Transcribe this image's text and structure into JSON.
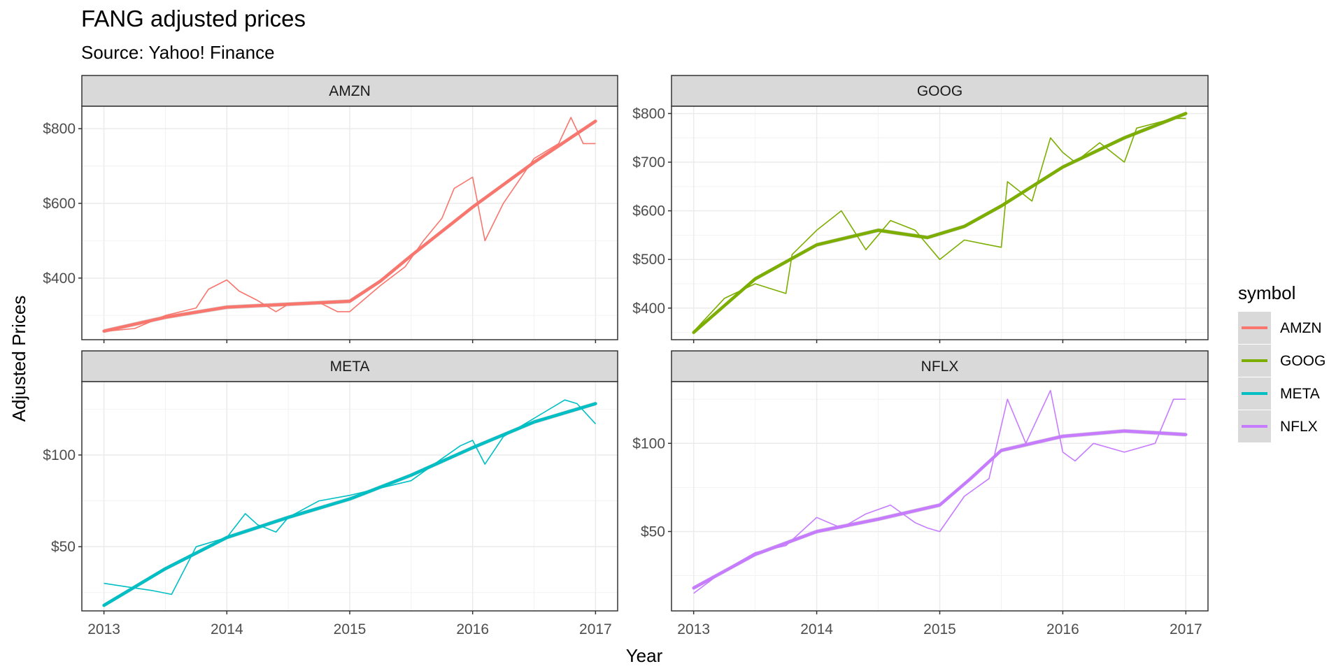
{
  "title": "FANG adjusted prices",
  "subtitle": "Source: Yahoo! Finance",
  "chart_data": {
    "type": "line",
    "title": "FANG adjusted prices",
    "subtitle": "Source: Yahoo! Finance",
    "xlabel": "Year",
    "ylabel": "Adjusted Prices",
    "x_ticks": [
      "2013",
      "2014",
      "2015",
      "2016",
      "2017"
    ],
    "grid": true,
    "legend": {
      "title": "symbol",
      "position": "right",
      "entries": [
        "AMZN",
        "GOOG",
        "META",
        "NFLX"
      ]
    },
    "colors": {
      "AMZN": "#F8766D",
      "GOOG": "#7CAE00",
      "META": "#00BFC4",
      "NFLX": "#C77CFF"
    },
    "panels": [
      {
        "name": "AMZN",
        "color": "#F8766D",
        "ylim": [
          235,
          860
        ],
        "y_ticks": [
          400,
          600,
          800
        ],
        "y_tick_labels": [
          "$400",
          "$600",
          "$800"
        ],
        "x": [
          2013.0,
          2013.25,
          2013.5,
          2013.75,
          2013.85,
          2014.0,
          2014.1,
          2014.25,
          2014.4,
          2014.5,
          2014.75,
          2014.9,
          2015.0,
          2015.25,
          2015.45,
          2015.6,
          2015.75,
          2015.85,
          2016.0,
          2016.1,
          2016.25,
          2016.5,
          2016.7,
          2016.8,
          2016.9,
          2017.0
        ],
        "y": [
          257,
          265,
          300,
          320,
          370,
          395,
          365,
          340,
          310,
          330,
          335,
          310,
          310,
          380,
          430,
          500,
          560,
          640,
          670,
          500,
          600,
          720,
          760,
          830,
          760,
          760
        ],
        "trend_x": [
          2013.0,
          2013.5,
          2014.0,
          2014.5,
          2015.0,
          2015.25,
          2015.5,
          2016.0,
          2016.5,
          2017.0
        ],
        "trend_y": [
          258,
          295,
          322,
          330,
          338,
          392,
          460,
          590,
          710,
          820
        ]
      },
      {
        "name": "GOOG",
        "color": "#7CAE00",
        "ylim": [
          335,
          815
        ],
        "y_ticks": [
          400,
          500,
          600,
          700,
          800
        ],
        "y_tick_labels": [
          "$400",
          "$500",
          "$600",
          "$700",
          "$800"
        ],
        "x": [
          2013.0,
          2013.25,
          2013.5,
          2013.75,
          2013.8,
          2014.0,
          2014.2,
          2014.4,
          2014.6,
          2014.8,
          2015.0,
          2015.2,
          2015.5,
          2015.55,
          2015.75,
          2015.9,
          2016.0,
          2016.1,
          2016.3,
          2016.5,
          2016.6,
          2016.75,
          2016.9,
          2017.0
        ],
        "y": [
          352,
          420,
          450,
          430,
          510,
          560,
          600,
          520,
          580,
          560,
          500,
          540,
          525,
          660,
          620,
          750,
          720,
          700,
          740,
          700,
          770,
          780,
          790,
          790
        ],
        "trend_x": [
          2013.0,
          2013.5,
          2014.0,
          2014.5,
          2014.9,
          2015.2,
          2015.5,
          2016.0,
          2016.5,
          2017.0
        ],
        "trend_y": [
          350,
          460,
          530,
          560,
          545,
          568,
          610,
          690,
          750,
          800
        ]
      },
      {
        "name": "META",
        "color": "#00BFC4",
        "ylim": [
          15,
          140
        ],
        "y_ticks": [
          50,
          100
        ],
        "y_tick_labels": [
          "$50",
          "$100"
        ],
        "x": [
          2013.0,
          2013.2,
          2013.4,
          2013.55,
          2013.75,
          2014.0,
          2014.15,
          2014.25,
          2014.4,
          2014.5,
          2014.75,
          2015.0,
          2015.25,
          2015.5,
          2015.75,
          2015.9,
          2016.0,
          2016.1,
          2016.25,
          2016.5,
          2016.75,
          2016.85,
          2017.0
        ],
        "y": [
          30,
          28,
          26,
          24,
          50,
          55,
          68,
          62,
          58,
          66,
          75,
          78,
          82,
          86,
          98,
          105,
          108,
          95,
          110,
          120,
          130,
          128,
          117
        ],
        "trend_x": [
          2013.0,
          2013.5,
          2014.0,
          2014.5,
          2015.0,
          2015.5,
          2016.0,
          2016.5,
          2017.0
        ],
        "trend_y": [
          18,
          38,
          55,
          66,
          76,
          89,
          104,
          118,
          128
        ]
      },
      {
        "name": "NFLX",
        "color": "#C77CFF",
        "ylim": [
          5,
          135
        ],
        "y_ticks": [
          50,
          100
        ],
        "y_tick_labels": [
          "$50",
          "$100"
        ],
        "x": [
          2013.0,
          2013.25,
          2013.5,
          2013.75,
          2014.0,
          2014.2,
          2014.4,
          2014.6,
          2014.8,
          2014.9,
          2015.0,
          2015.2,
          2015.4,
          2015.55,
          2015.7,
          2015.9,
          2016.0,
          2016.1,
          2016.25,
          2016.5,
          2016.75,
          2016.9,
          2017.0
        ],
        "y": [
          15,
          28,
          38,
          42,
          58,
          52,
          60,
          65,
          55,
          52,
          50,
          70,
          80,
          125,
          100,
          130,
          95,
          90,
          100,
          95,
          100,
          125,
          125
        ],
        "trend_x": [
          2013.0,
          2013.5,
          2014.0,
          2014.5,
          2015.0,
          2015.25,
          2015.5,
          2016.0,
          2016.5,
          2017.0
        ],
        "trend_y": [
          18,
          37,
          50,
          57,
          65,
          80,
          96,
          104,
          107,
          105
        ]
      }
    ]
  }
}
